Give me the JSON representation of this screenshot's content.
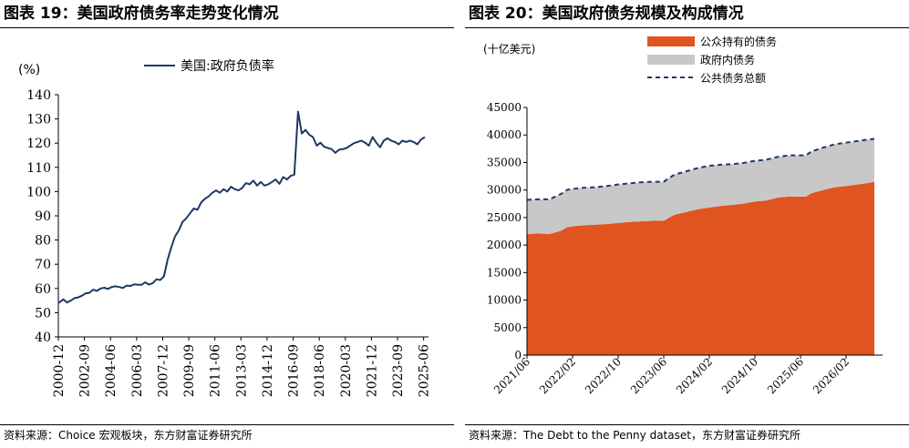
{
  "left": {
    "title": "图表 19：美国政府债务率走势变化情况",
    "source": "资料来源：Choice 宏观板块，东方财富证券研究所",
    "chart_data": {
      "type": "line",
      "unit_label": "(%)",
      "ylim": [
        40,
        140
      ],
      "yticks": [
        "40",
        "50",
        "60",
        "70",
        "80",
        "90",
        "100",
        "110",
        "120",
        "130",
        "140"
      ],
      "xtick_labels": [
        "2000-12",
        "2002-09",
        "2004-06",
        "2006-03",
        "2007-12",
        "2009-09",
        "2011-06",
        "2013-03",
        "2014-12",
        "2016-09",
        "2018-06",
        "2020-03",
        "2021-12",
        "2023-09",
        "2025-06"
      ],
      "legend": "top-center",
      "grid": false,
      "series": [
        {
          "name": "美国:政府负债率",
          "color": "#1f3864",
          "x": [
            2000.92,
            2001.25,
            2001.5,
            2001.75,
            2002.0,
            2002.25,
            2002.5,
            2002.75,
            2003.0,
            2003.25,
            2003.5,
            2003.75,
            2004.0,
            2004.25,
            2004.5,
            2004.75,
            2005.0,
            2005.25,
            2005.5,
            2005.75,
            2006.0,
            2006.25,
            2006.5,
            2006.75,
            2007.0,
            2007.25,
            2007.5,
            2007.75,
            2008.0,
            2008.25,
            2008.5,
            2008.75,
            2009.0,
            2009.25,
            2009.5,
            2009.75,
            2010.0,
            2010.25,
            2010.5,
            2010.75,
            2011.0,
            2011.25,
            2011.5,
            2011.75,
            2012.0,
            2012.25,
            2012.5,
            2012.75,
            2013.0,
            2013.25,
            2013.5,
            2013.75,
            2014.0,
            2014.25,
            2014.5,
            2014.75,
            2015.0,
            2015.25,
            2015.5,
            2015.75,
            2016.0,
            2016.25,
            2016.5,
            2016.75,
            2017.0,
            2017.25,
            2017.5,
            2017.75,
            2018.0,
            2018.25,
            2018.5,
            2018.75,
            2019.0,
            2019.25,
            2019.5,
            2019.75,
            2020.0,
            2020.25,
            2020.5,
            2020.75,
            2021.0,
            2021.25,
            2021.5,
            2021.75,
            2022.0,
            2022.25,
            2022.5,
            2022.75,
            2023.0,
            2023.25,
            2023.5,
            2023.75,
            2024.0,
            2024.25,
            2024.5,
            2024.75,
            2025.0,
            2025.25,
            2025.5
          ],
          "y": [
            54.0,
            55.5,
            54.2,
            55.0,
            56.0,
            56.3,
            57.0,
            58.0,
            58.2,
            59.5,
            59.0,
            60.0,
            60.3,
            59.8,
            60.6,
            60.9,
            60.6,
            60.2,
            61.2,
            61.0,
            61.7,
            61.5,
            61.5,
            62.5,
            61.6,
            62.2,
            63.8,
            63.5,
            65.0,
            72.0,
            77.0,
            81.5,
            84.0,
            87.5,
            89.0,
            91.0,
            93.0,
            92.5,
            95.5,
            97.0,
            98.0,
            99.5,
            100.5,
            99.5,
            101.0,
            100.0,
            102.0,
            101.0,
            100.5,
            101.5,
            103.5,
            103.0,
            104.5,
            102.5,
            104.0,
            102.5,
            103.0,
            104.0,
            105.0,
            103.2,
            106.0,
            105.0,
            106.5,
            107.0,
            133.0,
            124.0,
            125.5,
            123.5,
            122.5,
            119.0,
            120.2,
            118.5,
            118.0,
            117.5,
            116.0,
            117.3,
            117.5,
            118.0,
            119.0,
            120.0,
            120.5,
            121.0,
            120.2,
            119.0,
            122.5,
            120.2,
            118.3,
            121.0,
            122.0,
            121.0,
            120.5,
            119.5,
            121.0,
            120.5,
            121.0,
            120.5,
            119.5,
            121.5,
            122.5
          ]
        }
      ]
    }
  },
  "right": {
    "title": "图表 20：美国政府债务规模及构成情况",
    "source": "资料来源：The Debt to the Penny dataset，东方财富证券研究所",
    "chart_data": {
      "type": "area",
      "unit_label": "(十亿美元)",
      "ylim": [
        0,
        45000
      ],
      "yticks": [
        "0",
        "5000",
        "10000",
        "15000",
        "20000",
        "25000",
        "30000",
        "35000",
        "40000",
        "45000"
      ],
      "xtick_labels": [
        "2021/06",
        "2022/02",
        "2022/10",
        "2023/06",
        "2024/02",
        "2024/10",
        "2025/06",
        "2026/02"
      ],
      "legend": "top-right",
      "grid": false,
      "x": [
        2021.42,
        2021.58,
        2021.75,
        2021.92,
        2022.0,
        2022.08,
        2022.25,
        2022.42,
        2022.58,
        2022.75,
        2022.92,
        2023.08,
        2023.25,
        2023.42,
        2023.5,
        2023.58,
        2023.75,
        2023.92,
        2024.08,
        2024.25,
        2024.42,
        2024.58,
        2024.75,
        2024.92,
        2025.08,
        2025.25,
        2025.42,
        2025.5,
        2025.58,
        2025.75,
        2025.92,
        2026.08,
        2026.25,
        2026.42,
        2026.5
      ],
      "series": [
        {
          "name": "公众持有的债务",
          "color": "#e0541f",
          "values": [
            22000,
            22100,
            22000,
            22600,
            23200,
            23400,
            23600,
            23700,
            23800,
            24000,
            24200,
            24300,
            24400,
            24400,
            25000,
            25500,
            26000,
            26500,
            26800,
            27100,
            27300,
            27500,
            27900,
            28100,
            28600,
            28800,
            28800,
            28800,
            29400,
            30000,
            30500,
            30700,
            31000,
            31300,
            31500
          ]
        },
        {
          "name": "政府内债务",
          "color": "#c8c8c8",
          "values": [
            6200,
            6200,
            6300,
            6700,
            6800,
            6800,
            6800,
            6800,
            6900,
            7000,
            7000,
            7100,
            7100,
            7100,
            7200,
            7300,
            7400,
            7500,
            7600,
            7500,
            7400,
            7400,
            7400,
            7400,
            7400,
            7500,
            7500,
            7500,
            7600,
            7700,
            7800,
            7900,
            7900,
            7900,
            7800
          ]
        },
        {
          "name": "公共债务总额",
          "color": "#1f3864",
          "style": "dashed",
          "values": [
            28200,
            28300,
            28300,
            29300,
            30000,
            30200,
            30400,
            30500,
            30700,
            31000,
            31200,
            31400,
            31500,
            31500,
            32200,
            32800,
            33400,
            34000,
            34400,
            34600,
            34700,
            34900,
            35300,
            35500,
            36000,
            36300,
            36300,
            36300,
            37000,
            37700,
            38300,
            38600,
            38900,
            39200,
            39300
          ]
        }
      ]
    }
  }
}
